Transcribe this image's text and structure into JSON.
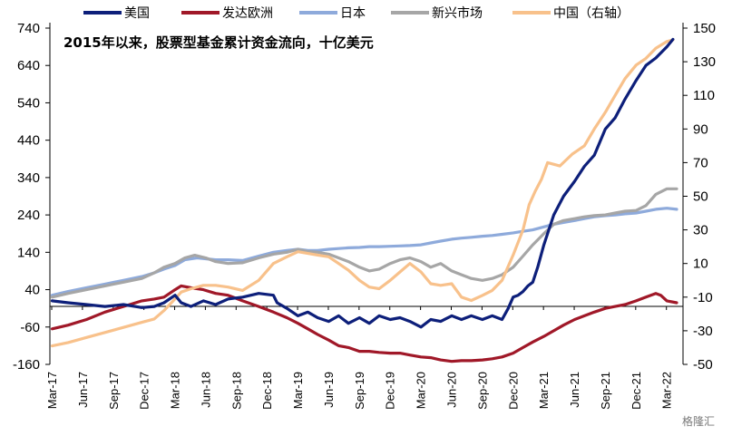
{
  "chart_data": {
    "type": "line",
    "subtitle": "2015年以来，股票型基金累计资金流向，十亿美元",
    "watermark": "格隆汇",
    "x_start": "2017-03",
    "x_end": "2022-04",
    "x_tick_labels": [
      "Mar-17",
      "Jun-17",
      "Sep-17",
      "Dec-17",
      "Mar-18",
      "Jun-18",
      "Sep-18",
      "Dec-18",
      "Mar-19",
      "Jun-19",
      "Sep-19",
      "Dec-19",
      "Mar-20",
      "Jun-20",
      "Sep-20",
      "Dec-20",
      "Mar-21",
      "Jun-21",
      "Sep-21",
      "Dec-21",
      "Mar-22"
    ],
    "y_left": {
      "min": -160,
      "max": 740,
      "ticks": [
        -160,
        -60,
        40,
        140,
        240,
        340,
        440,
        540,
        640,
        740
      ]
    },
    "y_right": {
      "min": -50,
      "max": 150,
      "ticks": [
        -50,
        -30,
        -10,
        10,
        30,
        50,
        70,
        90,
        110,
        130,
        150
      ]
    },
    "grid": false,
    "legend_position": "top",
    "series": [
      {
        "name": "美国",
        "axis": "left",
        "color": "#0d1f7a",
        "width": 3.2,
        "points": [
          [
            2017.17,
            10
          ],
          [
            2017.3,
            5
          ],
          [
            2017.45,
            0
          ],
          [
            2017.6,
            -5
          ],
          [
            2017.75,
            0
          ],
          [
            2017.9,
            -8
          ],
          [
            2018.0,
            -5
          ],
          [
            2018.08,
            5
          ],
          [
            2018.17,
            25
          ],
          [
            2018.22,
            5
          ],
          [
            2018.3,
            -5
          ],
          [
            2018.4,
            10
          ],
          [
            2018.5,
            0
          ],
          [
            2018.6,
            15
          ],
          [
            2018.72,
            20
          ],
          [
            2018.85,
            30
          ],
          [
            2018.97,
            25
          ],
          [
            2019.0,
            5
          ],
          [
            2019.08,
            -10
          ],
          [
            2019.17,
            -30
          ],
          [
            2019.25,
            -20
          ],
          [
            2019.33,
            -35
          ],
          [
            2019.42,
            -45
          ],
          [
            2019.5,
            -30
          ],
          [
            2019.58,
            -50
          ],
          [
            2019.67,
            -35
          ],
          [
            2019.75,
            -50
          ],
          [
            2019.83,
            -30
          ],
          [
            2019.92,
            -40
          ],
          [
            2020.0,
            -35
          ],
          [
            2020.08,
            -45
          ],
          [
            2020.17,
            -60
          ],
          [
            2020.25,
            -40
          ],
          [
            2020.33,
            -45
          ],
          [
            2020.42,
            -30
          ],
          [
            2020.5,
            -40
          ],
          [
            2020.58,
            -30
          ],
          [
            2020.67,
            -40
          ],
          [
            2020.75,
            -30
          ],
          [
            2020.83,
            -40
          ],
          [
            2020.88,
            -10
          ],
          [
            2020.92,
            20
          ],
          [
            2020.96,
            25
          ],
          [
            2021.0,
            35
          ],
          [
            2021.04,
            50
          ],
          [
            2021.08,
            60
          ],
          [
            2021.12,
            100
          ],
          [
            2021.17,
            160
          ],
          [
            2021.25,
            240
          ],
          [
            2021.33,
            290
          ],
          [
            2021.42,
            330
          ],
          [
            2021.5,
            370
          ],
          [
            2021.58,
            400
          ],
          [
            2021.67,
            470
          ],
          [
            2021.75,
            500
          ],
          [
            2021.83,
            550
          ],
          [
            2021.92,
            600
          ],
          [
            2022.0,
            640
          ],
          [
            2022.08,
            660
          ],
          [
            2022.17,
            690
          ],
          [
            2022.22,
            710
          ]
        ]
      },
      {
        "name": "发达欧洲",
        "axis": "left",
        "color": "#a01828",
        "width": 3.2,
        "points": [
          [
            2017.17,
            -65
          ],
          [
            2017.3,
            -55
          ],
          [
            2017.45,
            -40
          ],
          [
            2017.6,
            -20
          ],
          [
            2017.75,
            -5
          ],
          [
            2017.9,
            10
          ],
          [
            2018.0,
            15
          ],
          [
            2018.08,
            20
          ],
          [
            2018.17,
            40
          ],
          [
            2018.22,
            50
          ],
          [
            2018.3,
            45
          ],
          [
            2018.4,
            40
          ],
          [
            2018.5,
            30
          ],
          [
            2018.6,
            25
          ],
          [
            2018.72,
            10
          ],
          [
            2018.85,
            -5
          ],
          [
            2018.97,
            -20
          ],
          [
            2019.08,
            -35
          ],
          [
            2019.17,
            -50
          ],
          [
            2019.25,
            -65
          ],
          [
            2019.33,
            -80
          ],
          [
            2019.42,
            -95
          ],
          [
            2019.5,
            -110
          ],
          [
            2019.58,
            -115
          ],
          [
            2019.67,
            -125
          ],
          [
            2019.75,
            -125
          ],
          [
            2019.83,
            -128
          ],
          [
            2019.92,
            -130
          ],
          [
            2020.0,
            -130
          ],
          [
            2020.08,
            -135
          ],
          [
            2020.17,
            -140
          ],
          [
            2020.25,
            -142
          ],
          [
            2020.33,
            -148
          ],
          [
            2020.42,
            -152
          ],
          [
            2020.5,
            -150
          ],
          [
            2020.58,
            -150
          ],
          [
            2020.67,
            -148
          ],
          [
            2020.75,
            -145
          ],
          [
            2020.83,
            -140
          ],
          [
            2020.92,
            -130
          ],
          [
            2021.0,
            -115
          ],
          [
            2021.08,
            -100
          ],
          [
            2021.17,
            -85
          ],
          [
            2021.25,
            -70
          ],
          [
            2021.33,
            -55
          ],
          [
            2021.42,
            -40
          ],
          [
            2021.5,
            -30
          ],
          [
            2021.58,
            -20
          ],
          [
            2021.67,
            -10
          ],
          [
            2021.75,
            -5
          ],
          [
            2021.83,
            0
          ],
          [
            2021.92,
            10
          ],
          [
            2022.0,
            20
          ],
          [
            2022.08,
            30
          ],
          [
            2022.12,
            25
          ],
          [
            2022.17,
            10
          ],
          [
            2022.25,
            5
          ]
        ]
      },
      {
        "name": "日本",
        "axis": "left",
        "color": "#8eaadb",
        "width": 3.2,
        "points": [
          [
            2017.17,
            25
          ],
          [
            2017.3,
            35
          ],
          [
            2017.45,
            45
          ],
          [
            2017.6,
            55
          ],
          [
            2017.75,
            65
          ],
          [
            2017.9,
            75
          ],
          [
            2018.0,
            85
          ],
          [
            2018.08,
            95
          ],
          [
            2018.17,
            105
          ],
          [
            2018.25,
            120
          ],
          [
            2018.35,
            125
          ],
          [
            2018.5,
            120
          ],
          [
            2018.6,
            120
          ],
          [
            2018.72,
            118
          ],
          [
            2018.85,
            130
          ],
          [
            2018.97,
            140
          ],
          [
            2019.08,
            145
          ],
          [
            2019.17,
            148
          ],
          [
            2019.25,
            145
          ],
          [
            2019.33,
            145
          ],
          [
            2019.42,
            148
          ],
          [
            2019.5,
            150
          ],
          [
            2019.58,
            152
          ],
          [
            2019.67,
            153
          ],
          [
            2019.75,
            155
          ],
          [
            2019.83,
            155
          ],
          [
            2019.92,
            156
          ],
          [
            2020.0,
            157
          ],
          [
            2020.08,
            158
          ],
          [
            2020.17,
            160
          ],
          [
            2020.25,
            165
          ],
          [
            2020.33,
            170
          ],
          [
            2020.42,
            175
          ],
          [
            2020.5,
            178
          ],
          [
            2020.58,
            180
          ],
          [
            2020.67,
            183
          ],
          [
            2020.75,
            185
          ],
          [
            2020.83,
            188
          ],
          [
            2020.92,
            192
          ],
          [
            2021.0,
            196
          ],
          [
            2021.08,
            200
          ],
          [
            2021.17,
            208
          ],
          [
            2021.25,
            215
          ],
          [
            2021.33,
            220
          ],
          [
            2021.42,
            225
          ],
          [
            2021.5,
            230
          ],
          [
            2021.58,
            235
          ],
          [
            2021.67,
            238
          ],
          [
            2021.75,
            240
          ],
          [
            2021.83,
            243
          ],
          [
            2021.92,
            245
          ],
          [
            2022.0,
            250
          ],
          [
            2022.08,
            255
          ],
          [
            2022.17,
            258
          ],
          [
            2022.25,
            255
          ]
        ]
      },
      {
        "name": "新兴市场",
        "axis": "left",
        "color": "#a6a6a6",
        "width": 3.2,
        "points": [
          [
            2017.17,
            20
          ],
          [
            2017.3,
            30
          ],
          [
            2017.45,
            40
          ],
          [
            2017.6,
            50
          ],
          [
            2017.75,
            60
          ],
          [
            2017.9,
            70
          ],
          [
            2018.0,
            85
          ],
          [
            2018.08,
            100
          ],
          [
            2018.17,
            110
          ],
          [
            2018.25,
            125
          ],
          [
            2018.33,
            132
          ],
          [
            2018.42,
            125
          ],
          [
            2018.5,
            115
          ],
          [
            2018.6,
            110
          ],
          [
            2018.72,
            112
          ],
          [
            2018.85,
            125
          ],
          [
            2018.97,
            135
          ],
          [
            2019.08,
            140
          ],
          [
            2019.17,
            148
          ],
          [
            2019.25,
            142
          ],
          [
            2019.33,
            140
          ],
          [
            2019.42,
            135
          ],
          [
            2019.5,
            125
          ],
          [
            2019.58,
            115
          ],
          [
            2019.67,
            100
          ],
          [
            2019.75,
            90
          ],
          [
            2019.83,
            95
          ],
          [
            2019.92,
            110
          ],
          [
            2020.0,
            120
          ],
          [
            2020.08,
            125
          ],
          [
            2020.17,
            115
          ],
          [
            2020.25,
            100
          ],
          [
            2020.33,
            110
          ],
          [
            2020.42,
            90
          ],
          [
            2020.5,
            80
          ],
          [
            2020.58,
            70
          ],
          [
            2020.67,
            65
          ],
          [
            2020.75,
            70
          ],
          [
            2020.83,
            80
          ],
          [
            2020.92,
            100
          ],
          [
            2021.0,
            130
          ],
          [
            2021.08,
            160
          ],
          [
            2021.17,
            190
          ],
          [
            2021.25,
            215
          ],
          [
            2021.33,
            225
          ],
          [
            2021.42,
            230
          ],
          [
            2021.5,
            235
          ],
          [
            2021.58,
            238
          ],
          [
            2021.67,
            240
          ],
          [
            2021.75,
            245
          ],
          [
            2021.83,
            250
          ],
          [
            2021.92,
            252
          ],
          [
            2022.0,
            265
          ],
          [
            2022.08,
            295
          ],
          [
            2022.17,
            310
          ],
          [
            2022.25,
            310
          ]
        ]
      },
      {
        "name": "中国（右轴）",
        "axis": "right",
        "color": "#f8c18b",
        "width": 3.2,
        "points": [
          [
            2017.17,
            -39
          ],
          [
            2017.3,
            -37
          ],
          [
            2017.45,
            -34
          ],
          [
            2017.6,
            -31
          ],
          [
            2017.75,
            -28
          ],
          [
            2017.9,
            -25
          ],
          [
            2018.0,
            -23
          ],
          [
            2018.08,
            -18
          ],
          [
            2018.17,
            -11
          ],
          [
            2018.22,
            -7
          ],
          [
            2018.3,
            -5
          ],
          [
            2018.4,
            -3
          ],
          [
            2018.5,
            -3
          ],
          [
            2018.6,
            -4
          ],
          [
            2018.72,
            -6
          ],
          [
            2018.85,
            0
          ],
          [
            2018.97,
            10
          ],
          [
            2019.08,
            14
          ],
          [
            2019.17,
            17
          ],
          [
            2019.25,
            16
          ],
          [
            2019.33,
            15
          ],
          [
            2019.42,
            14
          ],
          [
            2019.5,
            10
          ],
          [
            2019.58,
            6
          ],
          [
            2019.67,
            0
          ],
          [
            2019.75,
            -4
          ],
          [
            2019.83,
            -5
          ],
          [
            2019.92,
            0
          ],
          [
            2020.0,
            5
          ],
          [
            2020.08,
            10
          ],
          [
            2020.17,
            5
          ],
          [
            2020.25,
            -2
          ],
          [
            2020.33,
            -3
          ],
          [
            2020.42,
            -2
          ],
          [
            2020.5,
            -10
          ],
          [
            2020.58,
            -12
          ],
          [
            2020.67,
            -9
          ],
          [
            2020.75,
            -6
          ],
          [
            2020.83,
            0
          ],
          [
            2020.92,
            15
          ],
          [
            2021.0,
            30
          ],
          [
            2021.05,
            45
          ],
          [
            2021.1,
            53
          ],
          [
            2021.15,
            60
          ],
          [
            2021.2,
            70
          ],
          [
            2021.3,
            68
          ],
          [
            2021.4,
            75
          ],
          [
            2021.5,
            80
          ],
          [
            2021.58,
            90
          ],
          [
            2021.67,
            100
          ],
          [
            2021.75,
            110
          ],
          [
            2021.83,
            120
          ],
          [
            2021.92,
            128
          ],
          [
            2022.0,
            132
          ],
          [
            2022.08,
            138
          ],
          [
            2022.17,
            142
          ],
          [
            2022.22,
            143
          ]
        ]
      }
    ]
  }
}
